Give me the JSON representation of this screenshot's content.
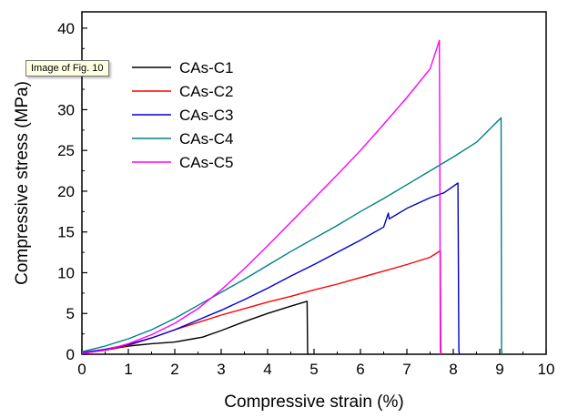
{
  "tooltip": {
    "text": "Image of Fig. 10"
  },
  "chart_data": {
    "type": "line",
    "title": "",
    "xlabel": "Compressive strain (%)",
    "ylabel": "Compressive stress (MPa)",
    "xlim": [
      0,
      10
    ],
    "ylim": [
      0,
      42
    ],
    "xticks": [
      0,
      1,
      2,
      3,
      4,
      5,
      6,
      7,
      8,
      9,
      10
    ],
    "yticks": [
      0,
      5,
      10,
      15,
      20,
      25,
      30,
      35,
      40
    ],
    "grid": false,
    "legend": "top-left",
    "series": [
      {
        "name": "CAs-C1",
        "color": "#000000",
        "points": [
          [
            0,
            0.2
          ],
          [
            0.5,
            0.5
          ],
          [
            1,
            1.0
          ],
          [
            1.5,
            1.3
          ],
          [
            2,
            1.5
          ],
          [
            2.4,
            1.9
          ],
          [
            2.6,
            2.1
          ],
          [
            3,
            2.9
          ],
          [
            3.5,
            4.0
          ],
          [
            4,
            5.0
          ],
          [
            4.5,
            5.9
          ],
          [
            4.85,
            6.5
          ],
          [
            4.86,
            0.3
          ],
          [
            4.87,
            0
          ]
        ]
      },
      {
        "name": "CAs-C2",
        "color": "#ff0000",
        "points": [
          [
            0,
            0.1
          ],
          [
            0.5,
            0.5
          ],
          [
            1,
            1.1
          ],
          [
            1.5,
            2.0
          ],
          [
            2,
            3.0
          ],
          [
            2.5,
            3.9
          ],
          [
            3,
            4.8
          ],
          [
            3.5,
            5.6
          ],
          [
            4,
            6.4
          ],
          [
            4.5,
            7.1
          ],
          [
            5,
            7.9
          ],
          [
            5.5,
            8.6
          ],
          [
            6,
            9.4
          ],
          [
            6.5,
            10.2
          ],
          [
            7,
            11.0
          ],
          [
            7.5,
            11.9
          ],
          [
            7.72,
            12.7
          ],
          [
            7.73,
            0.5
          ],
          [
            7.74,
            0
          ]
        ]
      },
      {
        "name": "CAs-C3",
        "color": "#0000cc",
        "points": [
          [
            0,
            0.2
          ],
          [
            0.5,
            0.6
          ],
          [
            1,
            1.2
          ],
          [
            1.5,
            2.0
          ],
          [
            2,
            3.0
          ],
          [
            2.5,
            4.2
          ],
          [
            3,
            5.4
          ],
          [
            3.5,
            6.7
          ],
          [
            4,
            8.1
          ],
          [
            4.5,
            9.6
          ],
          [
            5,
            11.0
          ],
          [
            5.5,
            12.5
          ],
          [
            6,
            14.0
          ],
          [
            6.5,
            15.6
          ],
          [
            6.6,
            17.3
          ],
          [
            6.62,
            16.6
          ],
          [
            7,
            17.9
          ],
          [
            7.5,
            19.2
          ],
          [
            7.8,
            19.8
          ],
          [
            8.1,
            21.0
          ],
          [
            8.12,
            0.5
          ],
          [
            8.13,
            0
          ]
        ]
      },
      {
        "name": "CAs-C4",
        "color": "#008080",
        "points": [
          [
            0,
            0.3
          ],
          [
            0.5,
            1.0
          ],
          [
            1,
            1.9
          ],
          [
            1.5,
            3.0
          ],
          [
            2,
            4.4
          ],
          [
            2.5,
            6.0
          ],
          [
            3,
            7.6
          ],
          [
            3.5,
            9.2
          ],
          [
            4,
            10.9
          ],
          [
            4.5,
            12.6
          ],
          [
            5,
            14.2
          ],
          [
            5.5,
            15.8
          ],
          [
            6,
            17.5
          ],
          [
            6.5,
            19.1
          ],
          [
            7,
            20.8
          ],
          [
            7.5,
            22.5
          ],
          [
            8,
            24.2
          ],
          [
            8.5,
            26.0
          ],
          [
            9.03,
            29.0
          ],
          [
            9.04,
            0.5
          ],
          [
            9.05,
            0
          ]
        ]
      },
      {
        "name": "CAs-C5",
        "color": "#ff00ff",
        "points": [
          [
            0,
            0.1
          ],
          [
            0.5,
            0.5
          ],
          [
            1,
            1.3
          ],
          [
            1.5,
            2.4
          ],
          [
            2,
            3.8
          ],
          [
            2.5,
            5.6
          ],
          [
            3,
            7.9
          ],
          [
            3.5,
            10.5
          ],
          [
            4,
            13.3
          ],
          [
            4.5,
            16.2
          ],
          [
            5,
            19.1
          ],
          [
            5.5,
            22.0
          ],
          [
            6,
            25.0
          ],
          [
            6.5,
            28.2
          ],
          [
            7,
            31.5
          ],
          [
            7.5,
            35.0
          ],
          [
            7.7,
            38.5
          ],
          [
            7.71,
            24.0
          ],
          [
            7.72,
            0.5
          ],
          [
            7.73,
            0
          ]
        ]
      }
    ]
  }
}
